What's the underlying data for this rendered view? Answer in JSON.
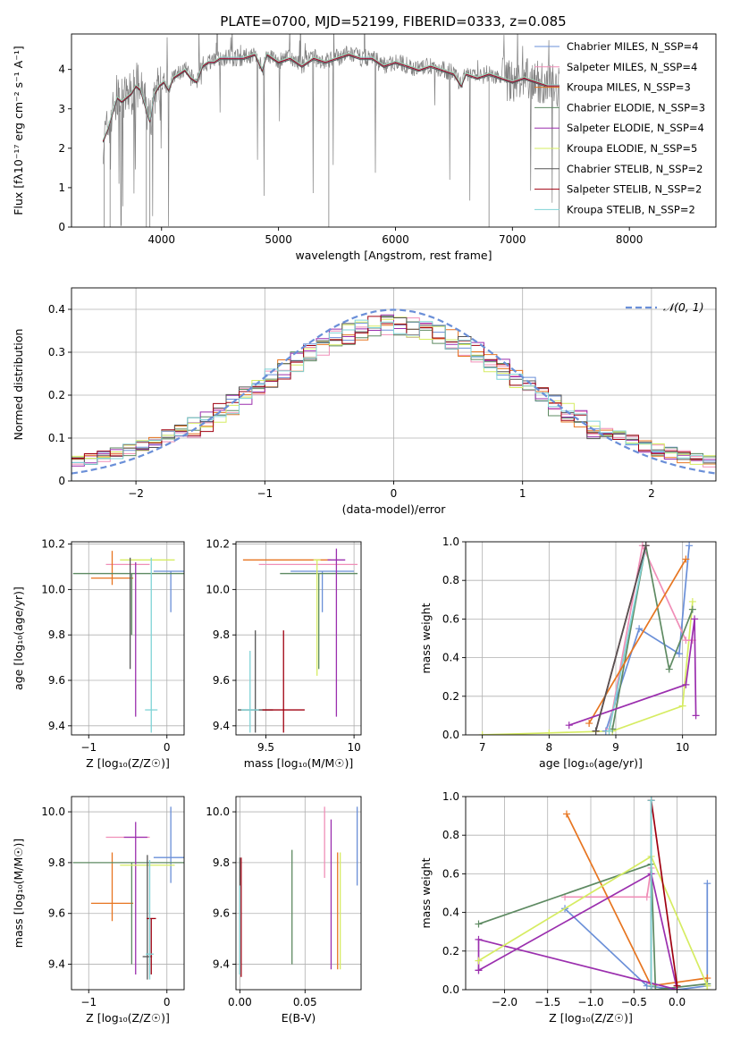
{
  "figure_title": "PLATE=0700, MJD=52199, FIBERID=0333, z=0.085",
  "colors": {
    "c0": "#6a8fd8",
    "c1": "#f08fb8",
    "c2": "#e77520",
    "c3": "#5e8a62",
    "c4": "#9b2fae",
    "c5": "#d6ec62",
    "c6": "#555555",
    "c7": "#a00010",
    "c8": "#7fd3d6",
    "obs": "#808080",
    "grid": "#b0b0b0"
  },
  "chart_data": [
    {
      "id": "spectrum",
      "type": "line",
      "title": "PLATE=0700, MJD=52199, FIBERID=0333, z=0.085",
      "xlabel": "wavelength [Angstrom, rest frame]",
      "ylabel": "Flux [fλ10⁻¹⁷ erg cm⁻² s⁻¹ A⁻¹]",
      "xlim": [
        3230,
        8740
      ],
      "ylim": [
        0,
        4.9
      ],
      "xticks": [
        4000,
        5000,
        6000,
        7000,
        8000
      ],
      "yticks": [
        0,
        1,
        2,
        3,
        4
      ],
      "grid": false,
      "legend_position": "right",
      "observed": {
        "x": [
          3500,
          3540,
          3580,
          3620,
          3660,
          3700,
          3740,
          3780,
          3820,
          3860,
          3900,
          3940,
          3980,
          4020,
          4060,
          4100,
          4150,
          4200,
          4250,
          4300,
          4350,
          4400,
          4450,
          4500,
          4600,
          4700,
          4800,
          4861,
          4900,
          5000,
          5100,
          5200,
          5300,
          5400,
          5500,
          5600,
          5700,
          5800,
          5900,
          6000,
          6100,
          6200,
          6300,
          6400,
          6500,
          6563,
          6600,
          6700,
          6800,
          6900,
          7000,
          7100,
          7200,
          7300,
          7400
        ],
        "y": [
          2.2,
          2.5,
          2.9,
          3.3,
          3.2,
          3.3,
          3.4,
          3.6,
          3.5,
          3.1,
          2.7,
          3.4,
          3.6,
          3.7,
          3.5,
          3.8,
          3.9,
          4.0,
          3.8,
          3.7,
          4.1,
          4.2,
          4.2,
          4.3,
          4.3,
          4.3,
          4.4,
          4.0,
          4.4,
          4.2,
          4.3,
          4.1,
          4.3,
          4.2,
          4.3,
          4.4,
          4.3,
          4.3,
          4.1,
          4.2,
          4.1,
          4.0,
          4.1,
          4.0,
          3.9,
          3.6,
          3.9,
          3.8,
          3.9,
          3.8,
          3.7,
          3.8,
          3.7,
          3.6,
          3.6
        ]
      },
      "series": [
        {
          "name": "Chabrier MILES, N_SSP=4",
          "n_ssp": 4,
          "color": "c0"
        },
        {
          "name": "Salpeter MILES, N_SSP=4",
          "n_ssp": 4,
          "color": "c1"
        },
        {
          "name": "Kroupa MILES, N_SSP=3",
          "n_ssp": 3,
          "color": "c2"
        },
        {
          "name": "Chabrier ELODIE, N_SSP=3",
          "n_ssp": 3,
          "color": "c3"
        },
        {
          "name": "Salpeter ELODIE, N_SSP=4",
          "n_ssp": 4,
          "color": "c4"
        },
        {
          "name": "Kroupa ELODIE, N_SSP=5",
          "n_ssp": 5,
          "color": "c5"
        },
        {
          "name": "Chabrier STELIB, N_SSP=2",
          "n_ssp": 2,
          "color": "c6"
        },
        {
          "name": "Salpeter STELIB, N_SSP=2",
          "n_ssp": 2,
          "color": "c7"
        },
        {
          "name": "Kroupa STELIB, N_SSP=2",
          "n_ssp": 2,
          "color": "c8"
        }
      ]
    },
    {
      "id": "residuals",
      "type": "histogram",
      "xlabel": "(data-model)/error",
      "ylabel": "Normed distribution",
      "xlim": [
        -2.5,
        2.5
      ],
      "ylim": [
        0,
        0.45
      ],
      "xticks": [
        -2,
        -1,
        0,
        1,
        2
      ],
      "yticks": [
        0.0,
        0.1,
        0.2,
        0.3,
        0.4
      ],
      "grid": true,
      "legend_position": "top-right",
      "bin_width": 0.1,
      "reference_curve": {
        "name": "𝒩(0, 1)",
        "mean": 0,
        "sigma": 1,
        "color": "c0"
      },
      "series_colors": [
        "c0",
        "c1",
        "c2",
        "c3",
        "c4",
        "c5",
        "c6",
        "c7",
        "c8"
      ]
    },
    {
      "id": "age_vs_Z",
      "type": "scatter",
      "xlabel": "Z [log₁₀(Z/Z☉)]",
      "ylabel": "age  [log₁₀(age/yr)]",
      "xlim": [
        -1.22,
        0.22
      ],
      "ylim": [
        9.36,
        10.21
      ],
      "xticks": [
        -1,
        0
      ],
      "ytick_labels": [
        "9.4",
        "9.6",
        "9.8",
        "10.0",
        "10.2"
      ],
      "yticks": [
        9.4,
        9.6,
        9.8,
        10.0,
        10.2
      ],
      "grid": true,
      "points": [
        {
          "color": "c0",
          "x": 0.05,
          "y": 10.08,
          "xerr": 0.22,
          "yerr": [
            0.18,
            0.0
          ]
        },
        {
          "color": "c1",
          "x": -0.5,
          "y": 10.11,
          "xerr": 0.28,
          "yerr": [
            0.0,
            0.0
          ]
        },
        {
          "color": "c2",
          "x": -0.7,
          "y": 10.05,
          "xerr": 0.27,
          "yerr": [
            0.03,
            0.12
          ]
        },
        {
          "color": "c3",
          "x": -0.45,
          "y": 10.07,
          "xerr": 0.75,
          "yerr": [
            0.27,
            0.0
          ]
        },
        {
          "color": "c4",
          "x": -0.4,
          "y": 9.79,
          "xerr": 0.0,
          "yerr": [
            0.35,
            0.33
          ]
        },
        {
          "color": "c5",
          "x": -0.25,
          "y": 10.13,
          "xerr": 0.35,
          "yerr": [
            0.0,
            0.0
          ]
        },
        {
          "color": "c6",
          "x": -0.47,
          "y": 10.14,
          "xerr": 0.0,
          "yerr": [
            0.49,
            0.0
          ]
        },
        {
          "color": "c7",
          "x": -0.3,
          "y": 10.13,
          "xerr": 0.0,
          "yerr": [
            0.0,
            0.0
          ]
        },
        {
          "color": "c8",
          "x": -0.2,
          "y": 9.47,
          "xerr": 0.08,
          "yerr": [
            0.1,
            0.67
          ]
        }
      ]
    },
    {
      "id": "age_vs_mass",
      "type": "scatter",
      "xlabel": "mass [log₁₀(M/M☉)]",
      "ylabel": "",
      "xlim": [
        9.33,
        10.04
      ],
      "ylim": [
        9.36,
        10.21
      ],
      "xticks": [
        9.5,
        10.0
      ],
      "ytick_labels": [
        "9.4",
        "9.6",
        "9.8",
        "10.0",
        "10.2"
      ],
      "yticks": [
        9.4,
        9.6,
        9.8,
        10.0,
        10.2
      ],
      "grid": true,
      "points": [
        {
          "color": "c0",
          "x": 9.82,
          "y": 10.08,
          "xerr": 0.18,
          "yerr": [
            0.18,
            0.0
          ]
        },
        {
          "color": "c1",
          "x": 9.74,
          "y": 10.11,
          "xerr": 0.28,
          "yerr": [
            0.0,
            0.0
          ]
        },
        {
          "color": "c2",
          "x": 9.62,
          "y": 10.13,
          "xerr": 0.25,
          "yerr": [
            0.0,
            0.0
          ]
        },
        {
          "color": "c3",
          "x": 9.8,
          "y": 10.07,
          "xerr": 0.22,
          "yerr": [
            0.42,
            0.0
          ]
        },
        {
          "color": "c4",
          "x": 9.9,
          "y": 10.13,
          "xerr": 0.05,
          "yerr": [
            0.69,
            0.05
          ]
        },
        {
          "color": "c5",
          "x": 9.79,
          "y": 10.13,
          "xerr": 0.02,
          "yerr": [
            0.51,
            0.0
          ]
        },
        {
          "color": "c6",
          "x": 9.44,
          "y": 9.47,
          "xerr": 0.1,
          "yerr": [
            0.1,
            0.35
          ]
        },
        {
          "color": "c7",
          "x": 9.6,
          "y": 9.47,
          "xerr": 0.12,
          "yerr": [
            0.1,
            0.35
          ]
        },
        {
          "color": "c8",
          "x": 9.41,
          "y": 9.47,
          "xerr": 0.05,
          "yerr": [
            0.1,
            0.26
          ]
        }
      ]
    },
    {
      "id": "weight_vs_age",
      "type": "line",
      "xlabel": "age  [log₁₀(age/yr)]",
      "ylabel": "mass weight",
      "xlim": [
        6.75,
        10.5
      ],
      "ylim": [
        0,
        1
      ],
      "xticks": [
        7,
        8,
        9,
        10
      ],
      "yticks": [
        0.0,
        0.2,
        0.4,
        0.6,
        0.8,
        1.0
      ],
      "ytick_labels": [
        "0.0",
        "0.2",
        "0.4",
        "0.6",
        "0.8",
        "1.0"
      ],
      "grid": true,
      "series": [
        {
          "color": "c5",
          "x": [
            7.0,
            8.0,
            8.95,
            10.0,
            10.15
          ],
          "y": [
            0.0,
            0.01,
            0.02,
            0.15,
            0.69
          ]
        },
        {
          "color": "c0",
          "x": [
            8.85,
            9.35,
            9.95,
            10.1
          ],
          "y": [
            0.02,
            0.55,
            0.42,
            0.98
          ]
        },
        {
          "color": "c1",
          "x": [
            8.9,
            9.4,
            10.05,
            10.15
          ],
          "y": [
            0.03,
            0.98,
            0.49,
            0.49
          ]
        },
        {
          "color": "c3",
          "x": [
            8.95,
            9.45,
            9.8,
            10.15
          ],
          "y": [
            0.03,
            0.98,
            0.34,
            0.65
          ]
        },
        {
          "color": "c8",
          "x": [
            8.9,
            9.45
          ],
          "y": [
            0.02,
            0.98
          ]
        },
        {
          "color": "c7",
          "x": [
            8.7,
            9.45
          ],
          "y": [
            0.02,
            0.98
          ]
        },
        {
          "color": "c2",
          "x": [
            8.6,
            10.05
          ],
          "y": [
            0.06,
            0.91
          ]
        },
        {
          "color": "c4",
          "x": [
            8.3,
            10.05,
            10.18,
            10.2
          ],
          "y": [
            0.05,
            0.26,
            0.6,
            0.1
          ]
        },
        {
          "color": "c6",
          "x": [
            8.7,
            9.45
          ],
          "y": [
            0.02,
            0.98
          ]
        }
      ]
    },
    {
      "id": "mass_vs_Z",
      "type": "scatter",
      "xlabel": "Z [log₁₀(Z/Z☉)]",
      "ylabel": "mass [log₁₀(M/M☉)]",
      "xlim": [
        -1.22,
        0.22
      ],
      "ylim": [
        9.3,
        10.06
      ],
      "xticks": [
        -1,
        0
      ],
      "ytick_labels": [
        "9.4",
        "9.6",
        "9.8",
        "10.0"
      ],
      "yticks": [
        9.4,
        9.6,
        9.8,
        10.0
      ],
      "grid": true,
      "points": [
        {
          "color": "c0",
          "x": 0.05,
          "y": 9.82,
          "xerr": 0.22,
          "yerr": [
            0.1,
            0.2
          ]
        },
        {
          "color": "c1",
          "x": -0.5,
          "y": 9.9,
          "xerr": 0.28,
          "yerr": [
            0.0,
            0.0
          ]
        },
        {
          "color": "c2",
          "x": -0.7,
          "y": 9.64,
          "xerr": 0.27,
          "yerr": [
            0.07,
            0.2
          ]
        },
        {
          "color": "c3",
          "x": -0.45,
          "y": 9.8,
          "xerr": 0.75,
          "yerr": [
            0.4,
            0.0
          ]
        },
        {
          "color": "c4",
          "x": -0.4,
          "y": 9.9,
          "xerr": 0.15,
          "yerr": [
            0.54,
            0.06
          ]
        },
        {
          "color": "c5",
          "x": -0.25,
          "y": 9.79,
          "xerr": 0.35,
          "yerr": [
            0.0,
            0.0
          ]
        },
        {
          "color": "c6",
          "x": -0.25,
          "y": 9.43,
          "xerr": 0.06,
          "yerr": [
            0.09,
            0.4
          ]
        },
        {
          "color": "c7",
          "x": -0.2,
          "y": 9.58,
          "xerr": 0.06,
          "yerr": [
            0.22,
            0.0
          ]
        },
        {
          "color": "c8",
          "x": -0.22,
          "y": 9.44,
          "xerr": 0.05,
          "yerr": [
            0.1,
            0.37
          ]
        }
      ]
    },
    {
      "id": "mass_vs_EBV",
      "type": "scatter",
      "xlabel": "E(B-V)",
      "ylabel": "",
      "xlim": [
        -0.003,
        0.093
      ],
      "ylim": [
        9.3,
        10.06
      ],
      "xticks": [
        0.0,
        0.05
      ],
      "xtick_labels": [
        "0.00",
        "0.05"
      ],
      "ytick_labels": [
        "9.4",
        "9.6",
        "9.8",
        "10.0"
      ],
      "yticks": [
        9.4,
        9.6,
        9.8,
        10.0
      ],
      "grid": true,
      "points": [
        {
          "color": "c0",
          "x": 0.09,
          "y": 9.86,
          "xerr": 0.0,
          "yerr": [
            0.15,
            0.16
          ]
        },
        {
          "color": "c1",
          "x": 0.065,
          "y": 9.88,
          "xerr": 0.0,
          "yerr": [
            0.14,
            0.14
          ]
        },
        {
          "color": "c2",
          "x": 0.075,
          "y": 9.6,
          "xerr": 0.0,
          "yerr": [
            0.22,
            0.24
          ]
        },
        {
          "color": "c3",
          "x": 0.04,
          "y": 9.62,
          "xerr": 0.0,
          "yerr": [
            0.22,
            0.23
          ]
        },
        {
          "color": "c4",
          "x": 0.07,
          "y": 9.65,
          "xerr": 0.0,
          "yerr": [
            0.27,
            0.32
          ]
        },
        {
          "color": "c5",
          "x": 0.077,
          "y": 9.6,
          "xerr": 0.0,
          "yerr": [
            0.22,
            0.24
          ]
        },
        {
          "color": "c6",
          "x": 0.0,
          "y": 9.55,
          "xerr": 0.0,
          "yerr": [
            0.19,
            0.27
          ]
        },
        {
          "color": "c7",
          "x": 0.001,
          "y": 9.6,
          "xerr": 0.0,
          "yerr": [
            0.25,
            0.22
          ]
        },
        {
          "color": "c8",
          "x": 0.0,
          "y": 9.5,
          "xerr": 0.0,
          "yerr": [
            0.14,
            0.21
          ]
        }
      ]
    },
    {
      "id": "weight_vs_Z",
      "type": "line",
      "xlabel": "Z [log₁₀(Z/Z☉)]",
      "ylabel": "mass weight",
      "xlim": [
        -2.45,
        0.45
      ],
      "ylim": [
        0,
        1
      ],
      "xticks": [
        -2.0,
        -1.5,
        -1.0,
        -0.5,
        0.0
      ],
      "xtick_labels": [
        "−2.0",
        "−1.5",
        "−1.0",
        "−0.5",
        "0.0"
      ],
      "yticks": [
        0.0,
        0.2,
        0.4,
        0.6,
        0.8,
        1.0
      ],
      "ytick_labels": [
        "0.0",
        "0.2",
        "0.4",
        "0.6",
        "0.8",
        "1.0"
      ],
      "grid": true,
      "series": [
        {
          "color": "c0",
          "x": [
            -1.3,
            -0.35,
            0.0,
            0.35,
            0.35
          ],
          "y": [
            0.42,
            0.02,
            0.0,
            0.02,
            0.55
          ]
        },
        {
          "color": "c1",
          "x": [
            -1.3,
            -0.35,
            -0.3,
            -0.3
          ],
          "y": [
            0.48,
            0.48,
            0.63,
            0.03
          ]
        },
        {
          "color": "c2",
          "x": [
            -1.28,
            -0.3,
            0.35
          ],
          "y": [
            0.91,
            0.02,
            0.06
          ]
        },
        {
          "color": "c3",
          "x": [
            -2.3,
            -0.3,
            -0.25,
            0.35
          ],
          "y": [
            0.34,
            0.65,
            0.0,
            0.03
          ]
        },
        {
          "color": "c4",
          "x": [
            -2.3,
            -0.3,
            0.0,
            -2.3,
            -2.3
          ],
          "y": [
            0.1,
            0.6,
            0.0,
            0.26,
            0.1
          ]
        },
        {
          "color": "c5",
          "x": [
            -2.3,
            -0.3,
            0.35,
            0.35
          ],
          "y": [
            0.15,
            0.69,
            0.02,
            0.0
          ]
        },
        {
          "color": "c6",
          "x": [
            -0.3,
            -0.3
          ],
          "y": [
            0.0,
            0.98
          ]
        },
        {
          "color": "c7",
          "x": [
            -0.3,
            0.0
          ],
          "y": [
            0.98,
            0.02
          ]
        },
        {
          "color": "c8",
          "x": [
            -0.3,
            -0.3
          ],
          "y": [
            0.02,
            0.98
          ]
        }
      ]
    }
  ]
}
